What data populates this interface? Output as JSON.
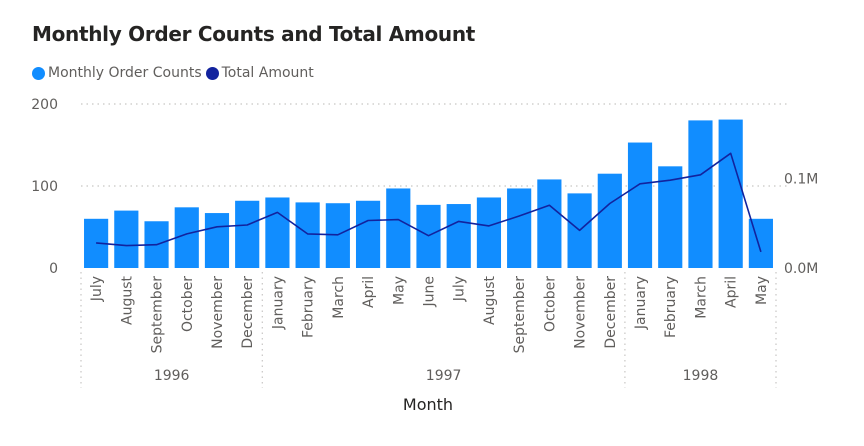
{
  "title": "Monthly Order Counts and Total Amount",
  "legend": [
    {
      "label": "Monthly Order Counts",
      "color": "#118DFF"
    },
    {
      "label": "Total Amount",
      "color": "#12239E"
    }
  ],
  "chart_data": {
    "type": "bar",
    "title": "Monthly Order Counts and Total Amount",
    "xlabel": "Month",
    "ylabel": "",
    "categories": [
      "July",
      "August",
      "September",
      "October",
      "November",
      "December",
      "January",
      "February",
      "March",
      "April",
      "May",
      "June",
      "July",
      "August",
      "September",
      "October",
      "November",
      "December",
      "January",
      "February",
      "March",
      "April",
      "May"
    ],
    "groups": [
      {
        "label": "1996",
        "count": 6
      },
      {
        "label": "1997",
        "count": 12
      },
      {
        "label": "1998",
        "count": 5
      }
    ],
    "series": [
      {
        "name": "Monthly Order Counts",
        "type": "bar",
        "axis": "left",
        "color": "#118DFF",
        "values": [
          60,
          70,
          57,
          74,
          67,
          82,
          86,
          80,
          79,
          82,
          97,
          77,
          78,
          86,
          97,
          108,
          91,
          115,
          153,
          124,
          180,
          181,
          60
        ]
      },
      {
        "name": "Total Amount",
        "type": "line",
        "axis": "right",
        "color": "#12239E",
        "values": [
          0.028,
          0.025,
          0.026,
          0.038,
          0.046,
          0.048,
          0.062,
          0.038,
          0.037,
          0.053,
          0.054,
          0.036,
          0.052,
          0.047,
          0.058,
          0.07,
          0.042,
          0.072,
          0.094,
          0.098,
          0.104,
          0.128,
          0.018
        ]
      }
    ],
    "y_left": {
      "ylim": [
        0,
        200
      ],
      "ticks": [
        0,
        100,
        200
      ],
      "tick_labels": [
        "0",
        "100",
        "200"
      ]
    },
    "y_right": {
      "ylim": [
        0,
        0.183
      ],
      "ticks": [
        0,
        0.1
      ],
      "tick_labels": [
        "0.0M",
        "0.1M"
      ]
    },
    "grid": true,
    "legend_position": "top-left"
  }
}
